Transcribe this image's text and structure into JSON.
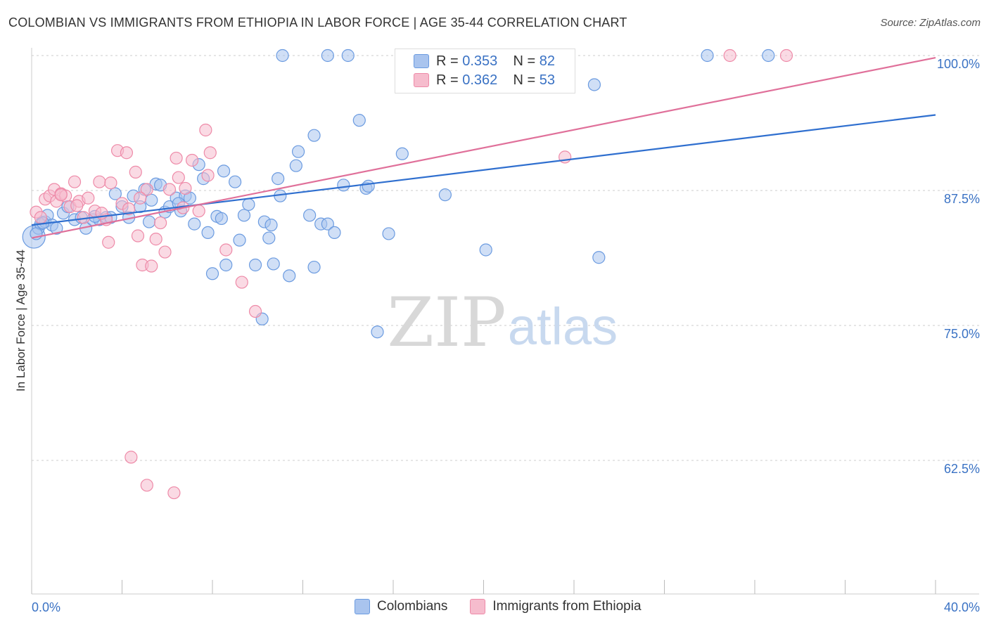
{
  "title": "COLOMBIAN VS IMMIGRANTS FROM ETHIOPIA IN LABOR FORCE | AGE 35-44 CORRELATION CHART",
  "source": "Source: ZipAtlas.com",
  "watermark": {
    "zip": "ZIP",
    "atlas": "atlas"
  },
  "colors": {
    "blue_fill": "#a9c4ee",
    "blue_stroke": "#6b9be0",
    "blue_line": "#2f6fcf",
    "pink_fill": "#f6bccd",
    "pink_stroke": "#ee8aa8",
    "pink_line": "#e0709a",
    "axis_label": "#3a72c4",
    "grid": "#cccccc"
  },
  "legend_top": [
    {
      "r_label": "R = ",
      "r_value": "0.353",
      "n_label": "N = ",
      "n_value": "82"
    },
    {
      "r_label": "R = ",
      "r_value": "0.362",
      "n_label": "N = ",
      "n_value": "53"
    }
  ],
  "legend_bottom": [
    "Colombians",
    "Immigrants from Ethiopia"
  ],
  "chart_data": {
    "type": "scatter",
    "title": "COLOMBIAN VS IMMIGRANTS FROM ETHIOPIA IN LABOR FORCE | AGE 35-44 CORRELATION CHART",
    "xlabel": "",
    "ylabel": "In Labor Force | Age 35-44",
    "xlim": [
      0,
      40
    ],
    "ylim": [
      50,
      100.5
    ],
    "x_tick_labels": [
      "0.0%",
      "40.0%"
    ],
    "y_ticks": [
      62.5,
      75.0,
      87.5,
      100.0
    ],
    "y_tick_labels": [
      "62.5%",
      "75.0%",
      "87.5%",
      "100.0%"
    ],
    "series": [
      {
        "name": "Colombians",
        "r": 0.353,
        "n": 82,
        "trend": [
          [
            0,
            84.3
          ],
          [
            40,
            94.5
          ]
        ],
        "points": [
          [
            0.1,
            83.2
          ],
          [
            0.3,
            84.0
          ],
          [
            0.4,
            84.4
          ],
          [
            0.6,
            84.6
          ],
          [
            0.7,
            85.2
          ],
          [
            0.9,
            84.3
          ],
          [
            1.1,
            84.0
          ],
          [
            1.4,
            85.4
          ],
          [
            1.6,
            86.0
          ],
          [
            1.9,
            84.8
          ],
          [
            2.2,
            85.0
          ],
          [
            2.4,
            84.0
          ],
          [
            2.7,
            84.8
          ],
          [
            3.0,
            84.8
          ],
          [
            3.3,
            85.0
          ],
          [
            3.7,
            87.2
          ],
          [
            4.0,
            86.0
          ],
          [
            4.3,
            85.0
          ],
          [
            4.5,
            87.0
          ],
          [
            4.8,
            86.0
          ],
          [
            5.0,
            87.6
          ],
          [
            5.2,
            84.6
          ],
          [
            5.3,
            86.6
          ],
          [
            5.5,
            88.1
          ],
          [
            5.7,
            88.0
          ],
          [
            5.9,
            85.5
          ],
          [
            6.1,
            86.0
          ],
          [
            6.4,
            86.8
          ],
          [
            6.6,
            85.6
          ],
          [
            6.8,
            87.0
          ],
          [
            7.0,
            86.8
          ],
          [
            7.2,
            84.4
          ],
          [
            7.4,
            89.9
          ],
          [
            7.6,
            88.6
          ],
          [
            7.8,
            83.6
          ],
          [
            8.0,
            79.8
          ],
          [
            8.2,
            85.1
          ],
          [
            8.4,
            84.9
          ],
          [
            8.5,
            89.3
          ],
          [
            8.6,
            80.6
          ],
          [
            9.0,
            88.3
          ],
          [
            9.2,
            82.9
          ],
          [
            9.4,
            85.2
          ],
          [
            9.6,
            86.2
          ],
          [
            9.9,
            80.6
          ],
          [
            10.2,
            75.6
          ],
          [
            10.3,
            84.6
          ],
          [
            10.5,
            83.1
          ],
          [
            10.7,
            80.7
          ],
          [
            10.9,
            88.6
          ],
          [
            11.0,
            87.0
          ],
          [
            11.4,
            79.6
          ],
          [
            11.7,
            89.8
          ],
          [
            11.8,
            91.1
          ],
          [
            12.3,
            85.2
          ],
          [
            12.5,
            92.6
          ],
          [
            12.5,
            80.4
          ],
          [
            12.8,
            84.4
          ],
          [
            13.1,
            84.4
          ],
          [
            13.4,
            83.6
          ],
          [
            13.8,
            88.0
          ],
          [
            14.0,
            100
          ],
          [
            14.5,
            94.0
          ],
          [
            14.8,
            87.7
          ],
          [
            14.9,
            87.9
          ],
          [
            15.3,
            74.4
          ],
          [
            15.8,
            83.5
          ],
          [
            16.4,
            90.9
          ],
          [
            11.1,
            100
          ],
          [
            13.1,
            100
          ],
          [
            18.3,
            87.1
          ],
          [
            20.1,
            82.0
          ],
          [
            24.9,
            97.3
          ],
          [
            25.1,
            81.3
          ],
          [
            29.9,
            100
          ],
          [
            32.6,
            100
          ],
          [
            0.2,
            83.5
          ],
          [
            0.5,
            84.5
          ],
          [
            2.8,
            85.1
          ],
          [
            3.5,
            85.0
          ],
          [
            6.5,
            86.3
          ],
          [
            10.6,
            84.3
          ]
        ]
      },
      {
        "name": "Immigrants from Ethiopia",
        "r": 0.362,
        "n": 53,
        "trend": [
          [
            0,
            83.1
          ],
          [
            40,
            99.8
          ]
        ],
        "points": [
          [
            0.2,
            85.5
          ],
          [
            0.4,
            85.0
          ],
          [
            0.6,
            86.7
          ],
          [
            0.8,
            87.0
          ],
          [
            1.0,
            87.6
          ],
          [
            1.1,
            86.5
          ],
          [
            1.3,
            87.2
          ],
          [
            1.5,
            87.0
          ],
          [
            1.7,
            86.0
          ],
          [
            1.9,
            88.3
          ],
          [
            2.1,
            86.5
          ],
          [
            2.3,
            85.0
          ],
          [
            2.5,
            86.8
          ],
          [
            2.8,
            85.6
          ],
          [
            3.0,
            88.3
          ],
          [
            3.3,
            84.8
          ],
          [
            3.4,
            82.7
          ],
          [
            3.5,
            88.2
          ],
          [
            3.8,
            91.2
          ],
          [
            4.0,
            86.3
          ],
          [
            4.2,
            91.0
          ],
          [
            4.3,
            85.8
          ],
          [
            4.6,
            89.2
          ],
          [
            4.7,
            83.3
          ],
          [
            4.9,
            80.6
          ],
          [
            5.1,
            87.6
          ],
          [
            5.3,
            80.5
          ],
          [
            5.5,
            83.0
          ],
          [
            5.7,
            84.5
          ],
          [
            5.9,
            81.8
          ],
          [
            6.1,
            87.6
          ],
          [
            6.4,
            90.5
          ],
          [
            6.5,
            88.7
          ],
          [
            6.7,
            85.9
          ],
          [
            6.8,
            87.7
          ],
          [
            7.1,
            90.3
          ],
          [
            7.4,
            85.6
          ],
          [
            7.7,
            93.1
          ],
          [
            7.8,
            88.9
          ],
          [
            7.9,
            91.0
          ],
          [
            8.6,
            82.0
          ],
          [
            9.3,
            79.0
          ],
          [
            9.9,
            76.3
          ],
          [
            4.4,
            62.8
          ],
          [
            5.1,
            60.2
          ],
          [
            6.3,
            59.5
          ],
          [
            23.6,
            90.6
          ],
          [
            30.9,
            100
          ],
          [
            33.4,
            100
          ],
          [
            1.3,
            87.1
          ],
          [
            2.0,
            86.1
          ],
          [
            3.1,
            85.4
          ],
          [
            4.8,
            86.8
          ]
        ]
      }
    ]
  }
}
